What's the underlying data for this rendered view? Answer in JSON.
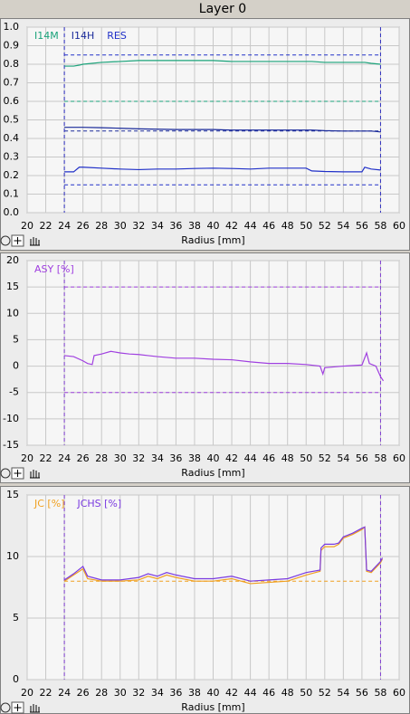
{
  "page_title": "Layer 0",
  "chart_data": [
    {
      "type": "line",
      "xlabel": "Radius [mm]",
      "xlim": [
        20,
        60
      ],
      "xticks": [
        20,
        22,
        24,
        26,
        28,
        30,
        32,
        34,
        36,
        38,
        40,
        42,
        44,
        46,
        48,
        50,
        52,
        54,
        56,
        58,
        60
      ],
      "ylim": [
        0,
        1
      ],
      "yticks": [
        {
          "value": 0,
          "label": "0.0"
        },
        0.1,
        0.2,
        0.3,
        0.4,
        0.5,
        0.6,
        0.7,
        0.8,
        0.9,
        {
          "value": 1,
          "label": "1.0"
        }
      ],
      "grid": true,
      "legend": "upper left",
      "x": [
        24,
        25,
        25.6,
        26,
        28,
        30,
        32,
        34,
        36,
        38,
        40,
        42,
        44,
        46,
        48,
        50,
        50.6,
        52,
        54,
        56,
        56.3,
        57,
        58
      ],
      "series": [
        {
          "name": "I14M",
          "color": "#1aa37a",
          "values": [
            0.79,
            0.79,
            0.795,
            0.8,
            0.81,
            0.815,
            0.82,
            0.82,
            0.82,
            0.82,
            0.82,
            0.815,
            0.815,
            0.815,
            0.815,
            0.815,
            0.815,
            0.81,
            0.81,
            0.81,
            0.81,
            0.805,
            0.8
          ]
        },
        {
          "name": "I14H",
          "color": "#1a2a9a",
          "values": [
            0.46,
            0.46,
            0.46,
            0.46,
            0.458,
            0.455,
            0.452,
            0.45,
            0.448,
            0.448,
            0.448,
            0.445,
            0.445,
            0.445,
            0.445,
            0.445,
            0.445,
            0.442,
            0.44,
            0.44,
            0.44,
            0.44,
            0.435
          ]
        },
        {
          "name": "RES",
          "color": "#2030c8",
          "values": [
            0.22,
            0.22,
            0.245,
            0.245,
            0.24,
            0.235,
            0.232,
            0.235,
            0.235,
            0.238,
            0.24,
            0.238,
            0.235,
            0.24,
            0.24,
            0.24,
            0.225,
            0.222,
            0.22,
            0.22,
            0.245,
            0.235,
            0.23
          ]
        }
      ],
      "hlines": [
        {
          "value": 0.85,
          "color": "#2030c8"
        },
        {
          "value": 0.6,
          "color": "#1aa37a"
        },
        {
          "value": 0.44,
          "color": "#1a2a9a"
        },
        {
          "value": 0.15,
          "color": "#2030c8"
        }
      ],
      "vlines": [
        24,
        58
      ],
      "vline_color": "#3030c0"
    },
    {
      "type": "line",
      "xlabel": "Radius [mm]",
      "xlim": [
        20,
        60
      ],
      "xticks": [
        20,
        22,
        24,
        26,
        28,
        30,
        32,
        34,
        36,
        38,
        40,
        42,
        44,
        46,
        48,
        50,
        52,
        54,
        56,
        58,
        60
      ],
      "ylim": [
        -15,
        20
      ],
      "yticks": [
        -15,
        -10,
        -5,
        0,
        5,
        10,
        15,
        20
      ],
      "grid": true,
      "legend": "upper left",
      "x": [
        24,
        25,
        26,
        26.5,
        27,
        27.2,
        28,
        29,
        30,
        31,
        32,
        33,
        34,
        36,
        38,
        40,
        42,
        44,
        46,
        48,
        50,
        51.5,
        51.8,
        52,
        54,
        56,
        56.5,
        56.8,
        57.5,
        58,
        58.3
      ],
      "series": [
        {
          "name": "ASY [%]",
          "color": "#a040e0",
          "values": [
            2,
            1.8,
            1,
            0.5,
            0.3,
            2,
            2.3,
            2.8,
            2.5,
            2.3,
            2.2,
            2,
            1.8,
            1.5,
            1.5,
            1.3,
            1.2,
            0.8,
            0.5,
            0.5,
            0.3,
            0,
            -1.5,
            -0.3,
            0,
            0.2,
            2.5,
            0.5,
            0,
            -2,
            -2.8
          ]
        }
      ],
      "hlines": [
        {
          "value": 15,
          "color": "#a040e0"
        },
        {
          "value": -5,
          "color": "#a040e0"
        }
      ],
      "vlines": [
        24,
        58
      ],
      "vline_color": "#8040d0"
    },
    {
      "type": "line",
      "xlabel": "Radius [mm]",
      "xlim": [
        20,
        60
      ],
      "xticks": [
        20,
        22,
        24,
        26,
        28,
        30,
        32,
        34,
        36,
        38,
        40,
        42,
        44,
        46,
        48,
        50,
        52,
        54,
        56,
        58,
        60
      ],
      "ylim": [
        0,
        15
      ],
      "yticks": [
        0,
        5,
        10,
        15
      ],
      "grid": true,
      "legend": "upper left",
      "x": [
        24,
        25,
        26,
        26.5,
        28,
        30,
        32,
        33,
        34,
        35,
        36,
        38,
        40,
        42,
        43,
        44,
        46,
        48,
        50,
        51.5,
        51.6,
        52,
        53,
        53.5,
        54,
        55,
        56,
        56.3,
        56.5,
        57,
        58,
        58.2
      ],
      "series": [
        {
          "name": "JC [%]",
          "color": "#f0a020",
          "values": [
            8,
            8.5,
            9,
            8.2,
            8,
            8,
            8.1,
            8.4,
            8.2,
            8.5,
            8.3,
            8,
            8,
            8.2,
            8,
            7.8,
            7.9,
            8,
            8.5,
            8.8,
            10.5,
            10.8,
            10.8,
            11,
            11.5,
            11.8,
            12.2,
            12.4,
            8.8,
            8.7,
            9.5,
            9.8
          ]
        },
        {
          "name": "JCHS [%]",
          "color": "#7a3ae0",
          "values": [
            8.1,
            8.6,
            9.2,
            8.4,
            8.1,
            8.1,
            8.3,
            8.6,
            8.4,
            8.7,
            8.5,
            8.2,
            8.2,
            8.4,
            8.2,
            8.0,
            8.1,
            8.2,
            8.7,
            8.9,
            10.7,
            11,
            11,
            11.1,
            11.6,
            11.9,
            12.3,
            12.4,
            8.9,
            8.8,
            9.6,
            9.9
          ]
        }
      ],
      "hlines": [
        {
          "value": 8,
          "color": "#f0a020"
        }
      ],
      "vlines": [
        24,
        58
      ],
      "vline_color": "#8040d0"
    }
  ]
}
